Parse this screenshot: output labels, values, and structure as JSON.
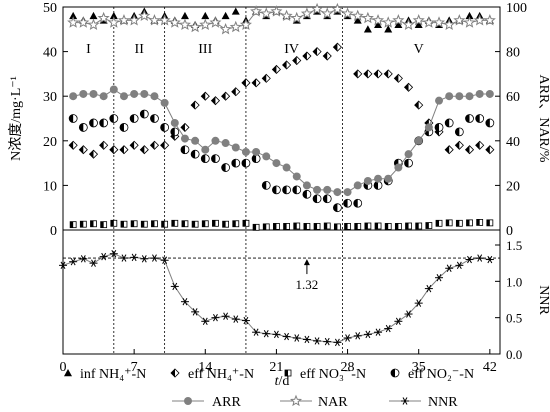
{
  "chart_data": {
    "type": "scatter",
    "x_axis": {
      "label_var": "t",
      "label_unit": "/d",
      "range": [
        0,
        43
      ],
      "ticks": [
        0,
        7,
        14,
        21,
        28,
        35,
        42
      ]
    },
    "top_panel": {
      "y_left": {
        "label": "N浓度/mg·L⁻¹",
        "range": [
          0,
          50
        ],
        "ticks": [
          0,
          10,
          20,
          30,
          40,
          50
        ]
      },
      "y_right": {
        "label": "ARR、NAR/%",
        "range": [
          0,
          100
        ],
        "ticks": [
          0,
          20,
          40,
          60,
          80,
          100
        ]
      },
      "phase_boundaries": [
        5,
        10,
        18,
        27.5
      ],
      "phases": [
        {
          "label": "I",
          "x": 2.5
        },
        {
          "label": "II",
          "x": 7.5
        },
        {
          "label": "III",
          "x": 14
        },
        {
          "label": "IV",
          "x": 22.5
        },
        {
          "label": "V",
          "x": 35
        }
      ],
      "series": [
        {
          "name": "inf NH₄⁺-N",
          "axis": "left",
          "marker": "triangle",
          "x": [
            1,
            2,
            3,
            4,
            5,
            6,
            7,
            8,
            9,
            10,
            11,
            12,
            13,
            14,
            15,
            16,
            17,
            18,
            19,
            20,
            21,
            22,
            23,
            24,
            25,
            26,
            27,
            28,
            29,
            30,
            31,
            32,
            33,
            34,
            35,
            36,
            37,
            38,
            39,
            40,
            41,
            42
          ],
          "values": [
            48,
            47,
            48,
            47,
            48,
            47,
            48,
            49,
            47,
            48,
            47,
            48,
            46,
            48,
            47,
            48,
            49,
            47,
            49,
            48,
            49,
            48,
            47,
            48,
            49,
            48,
            49,
            48,
            47,
            45,
            46,
            45,
            46,
            47,
            46,
            47,
            46,
            47,
            47,
            48,
            48,
            47
          ]
        },
        {
          "name": "eff NH₄⁺-N",
          "axis": "left",
          "marker": "half-diamond",
          "x": [
            1,
            2,
            3,
            4,
            5,
            6,
            7,
            8,
            9,
            10,
            11,
            12,
            13,
            14,
            15,
            16,
            17,
            18,
            19,
            20,
            21,
            22,
            23,
            24,
            25,
            26,
            27,
            29,
            30,
            31,
            32,
            33,
            34,
            35,
            36,
            37,
            38,
            39,
            40,
            41,
            42
          ],
          "values": [
            19,
            18,
            17,
            19,
            18,
            18,
            19,
            18,
            19,
            19,
            21,
            23,
            28,
            30,
            29,
            30,
            31,
            33,
            33,
            34,
            36,
            37,
            38,
            39,
            40,
            39,
            41,
            35,
            35,
            35,
            35,
            34,
            32,
            28,
            24,
            22,
            18,
            19,
            18,
            19,
            18
          ]
        },
        {
          "name": "eff NO₃⁻-N",
          "axis": "left",
          "marker": "half-square",
          "x": [
            1,
            2,
            3,
            4,
            5,
            6,
            7,
            8,
            9,
            10,
            11,
            12,
            13,
            14,
            15,
            16,
            17,
            18,
            19,
            20,
            21,
            22,
            23,
            24,
            25,
            26,
            27,
            28,
            29,
            30,
            31,
            32,
            33,
            34,
            35,
            36,
            37,
            38,
            39,
            40,
            41,
            42
          ],
          "values": [
            1.2,
            1.3,
            1.4,
            1.2,
            1.5,
            1.3,
            1.4,
            1.3,
            1.4,
            1.3,
            1.5,
            1.4,
            1.3,
            1.4,
            1.5,
            1.3,
            1.4,
            1.5,
            0.6,
            0.7,
            0.8,
            0.8,
            0.9,
            0.8,
            0.8,
            0.9,
            0.7,
            0.8,
            0.8,
            0.9,
            0.9,
            0.8,
            0.8,
            0.9,
            0.9,
            1.0,
            1.5,
            1.6,
            1.5,
            1.6,
            1.7,
            1.6
          ]
        },
        {
          "name": "eff NO₂⁻-N",
          "axis": "left",
          "marker": "half-circle",
          "x": [
            1,
            2,
            3,
            4,
            5,
            6,
            7,
            8,
            9,
            10,
            11,
            12,
            13,
            14,
            15,
            16,
            17,
            18,
            19,
            20,
            21,
            22,
            23,
            24,
            25,
            26,
            27,
            28,
            29,
            30,
            31,
            32,
            33,
            34,
            35,
            36,
            37,
            38,
            39,
            40,
            41,
            42
          ],
          "values": [
            25,
            23,
            24,
            24,
            25,
            23,
            25,
            26,
            25,
            23,
            22,
            18,
            17,
            16,
            16,
            14,
            15,
            15,
            16,
            10,
            9,
            9,
            9,
            8,
            7,
            7,
            5,
            6,
            6,
            10,
            10,
            11,
            15,
            15,
            20,
            22,
            23,
            24,
            22,
            25,
            25,
            24
          ]
        },
        {
          "name": "ARR",
          "axis": "right",
          "marker": "circle",
          "color": "#808080",
          "x": [
            1,
            2,
            3,
            4,
            5,
            6,
            7,
            8,
            9,
            10,
            11,
            12,
            13,
            14,
            15,
            16,
            17,
            18,
            19,
            20,
            21,
            22,
            23,
            24,
            25,
            26,
            27,
            28,
            29,
            30,
            31,
            32,
            33,
            34,
            35,
            36,
            37,
            38,
            39,
            40,
            41,
            42
          ],
          "values": [
            60,
            61,
            61,
            60,
            63,
            60,
            61,
            61,
            60,
            57,
            48,
            41,
            40,
            36,
            40,
            39,
            37,
            35,
            35,
            33,
            30,
            28,
            24,
            20,
            18,
            18,
            17,
            17,
            20,
            22,
            23,
            23,
            28,
            34,
            40,
            46,
            58,
            60,
            60,
            60,
            61,
            61
          ]
        },
        {
          "name": "NAR",
          "axis": "right",
          "marker": "star",
          "color": "#808080",
          "x": [
            1,
            2,
            3,
            4,
            5,
            6,
            7,
            8,
            9,
            10,
            11,
            12,
            13,
            14,
            15,
            16,
            17,
            18,
            19,
            20,
            21,
            22,
            23,
            24,
            25,
            26,
            27,
            28,
            29,
            30,
            31,
            32,
            33,
            34,
            35,
            36,
            37,
            38,
            39,
            40,
            41,
            42
          ],
          "values": [
            93,
            93,
            92,
            95,
            93,
            94,
            94,
            96,
            94,
            94,
            93,
            92,
            91,
            92,
            93,
            90,
            91,
            92,
            98,
            97,
            98,
            96,
            95,
            97,
            99,
            97,
            99,
            97,
            96,
            95,
            94,
            93,
            94,
            92,
            94,
            93,
            93,
            92,
            94,
            93,
            94,
            94
          ]
        }
      ]
    },
    "bottom_panel": {
      "y_right": {
        "label": "NNR",
        "range": [
          0,
          1.5
        ],
        "ticks": [
          0.0,
          0.5,
          1.0,
          1.5
        ]
      },
      "reference_line": {
        "value": 1.32,
        "label": "1.32",
        "label_x": 24
      },
      "series": [
        {
          "name": "NNR",
          "axis": "right",
          "marker": "asterisk",
          "color": "#808080",
          "x": [
            0,
            1,
            2,
            3,
            4,
            5,
            6,
            7,
            8,
            9,
            10,
            11,
            12,
            13,
            14,
            15,
            16,
            17,
            18,
            19,
            20,
            21,
            22,
            23,
            24,
            25,
            26,
            27,
            28,
            29,
            30,
            31,
            32,
            33,
            34,
            35,
            36,
            37,
            38,
            39,
            40,
            41,
            42
          ],
          "values": [
            1.22,
            1.27,
            1.31,
            1.25,
            1.34,
            1.38,
            1.32,
            1.33,
            1.31,
            1.32,
            1.29,
            0.93,
            0.72,
            0.58,
            0.45,
            0.5,
            0.52,
            0.48,
            0.46,
            0.3,
            0.28,
            0.27,
            0.24,
            0.22,
            0.2,
            0.18,
            0.17,
            0.16,
            0.22,
            0.25,
            0.27,
            0.3,
            0.35,
            0.45,
            0.55,
            0.7,
            0.9,
            1.05,
            1.18,
            1.22,
            1.3,
            1.32,
            1.3
          ]
        }
      ]
    },
    "legend": {
      "placement": "bottom",
      "rows": [
        [
          "inf NH₄⁺-N",
          "eff NH₄⁺-N",
          "eff NO₃⁻-N",
          "eff NO₂⁻-N"
        ],
        [
          "ARR",
          "NAR",
          "NNR"
        ]
      ]
    }
  }
}
